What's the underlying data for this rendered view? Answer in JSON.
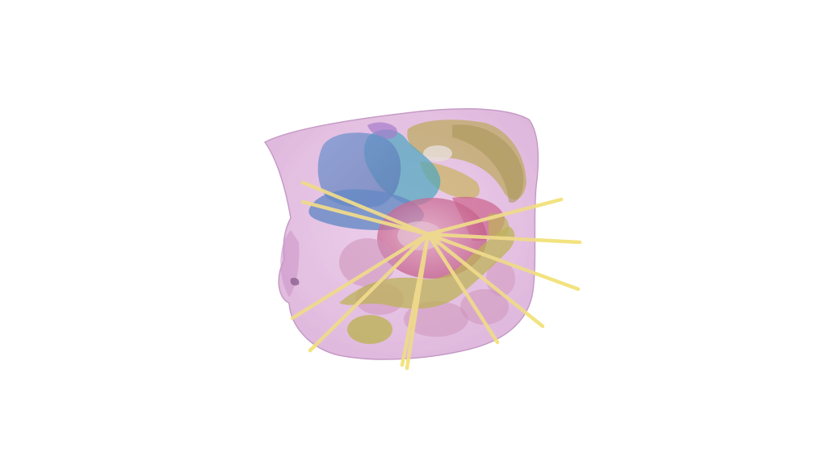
{
  "scene": {
    "type": "3d-anatomy-render",
    "background_color": "#ffffff",
    "colors": {
      "body_surface": "#d9a6d6",
      "body_surface_edge": "#b47fb5",
      "liver": "#4a7fc0",
      "heart_region": "#2ba3b8",
      "spleen_kidney": "#b7a84a",
      "stomach": "#c4b245",
      "colon": "#b5b23a",
      "intestine": "#c98ab0",
      "target_organ": "#c8507a",
      "needles": "#f2e27a"
    },
    "needle_count": 12
  }
}
